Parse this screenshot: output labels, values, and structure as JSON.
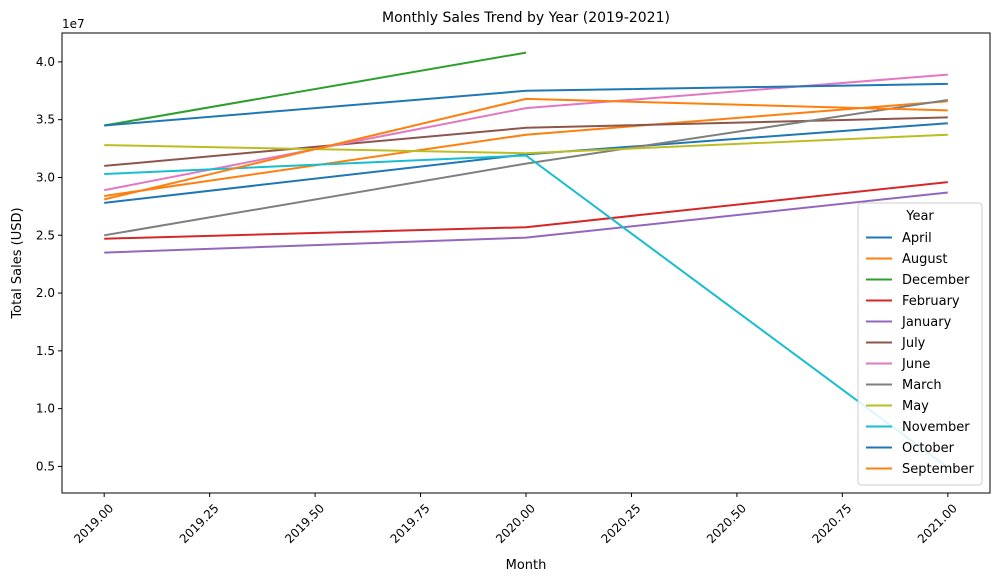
{
  "chart_data": {
    "type": "line",
    "title": "Monthly Sales Trend by Year (2019-2021)",
    "xlabel": "Month",
    "ylabel": "Total Sales (USD)",
    "y_offset_label": "1e7",
    "xlim": [
      2018.9,
      2021.1
    ],
    "ylim": [
      2700000,
      42500000
    ],
    "x": [
      2019,
      2020,
      2021
    ],
    "x_ticks": [
      2019.0,
      2019.25,
      2019.5,
      2019.75,
      2020.0,
      2020.25,
      2020.5,
      2020.75,
      2021.0
    ],
    "x_tick_labels": [
      "2019.00",
      "2019.25",
      "2019.50",
      "2019.75",
      "2020.00",
      "2020.25",
      "2020.50",
      "2020.75",
      "2021.00"
    ],
    "y_ticks": [
      5000000,
      10000000,
      15000000,
      20000000,
      25000000,
      30000000,
      35000000,
      40000000
    ],
    "y_tick_labels": [
      "0.5",
      "1.0",
      "1.5",
      "2.0",
      "2.5",
      "3.0",
      "3.5",
      "4.0"
    ],
    "grid": false,
    "legend_title": "Year",
    "legend_position": "lower-right",
    "series": [
      {
        "name": "April",
        "color": "#1f77b4",
        "values": [
          27800000,
          32000000,
          34700000
        ]
      },
      {
        "name": "August",
        "color": "#ff7f0e",
        "values": [
          28400000,
          33700000,
          36600000
        ]
      },
      {
        "name": "December",
        "color": "#2ca02c",
        "values": [
          34500000,
          40800000,
          null
        ]
      },
      {
        "name": "February",
        "color": "#d62728",
        "values": [
          24700000,
          25700000,
          29600000
        ]
      },
      {
        "name": "January",
        "color": "#9467bd",
        "values": [
          23500000,
          24800000,
          28700000
        ]
      },
      {
        "name": "July",
        "color": "#8c564b",
        "values": [
          31000000,
          34300000,
          35200000
        ]
      },
      {
        "name": "June",
        "color": "#e377c2",
        "values": [
          28900000,
          36000000,
          38900000
        ]
      },
      {
        "name": "March",
        "color": "#7f7f7f",
        "values": [
          25000000,
          31200000,
          36700000
        ]
      },
      {
        "name": "May",
        "color": "#bcbd22",
        "values": [
          32800000,
          32100000,
          33700000
        ]
      },
      {
        "name": "November",
        "color": "#17becf",
        "values": [
          30300000,
          31900000,
          4900000
        ]
      },
      {
        "name": "October",
        "color": "#1f77b4",
        "values": [
          34500000,
          37500000,
          38100000
        ]
      },
      {
        "name": "September",
        "color": "#ff7f0e",
        "values": [
          28100000,
          36800000,
          35800000
        ]
      }
    ]
  }
}
